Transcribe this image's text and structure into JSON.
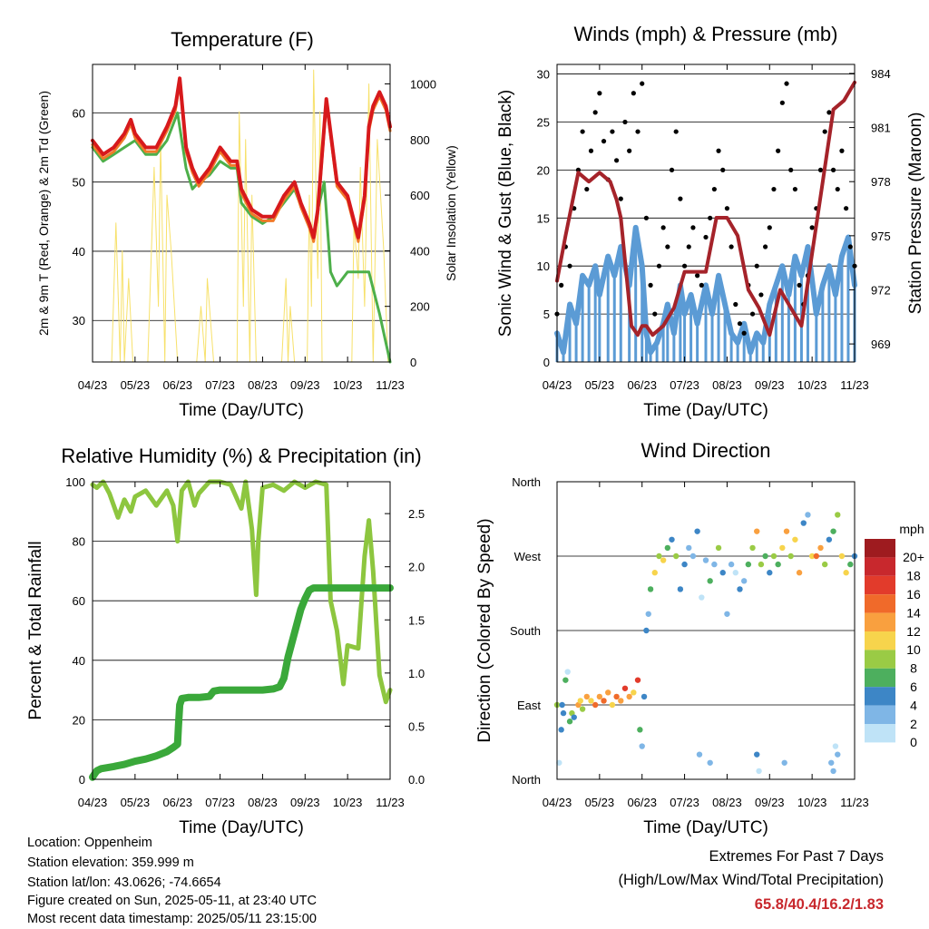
{
  "colors": {
    "t2m": "#d7191c",
    "t9m": "#f07a28",
    "td": "#4daf4a",
    "solar": "#f7e16b",
    "wind": "#5b9bd5",
    "gust": "#000000",
    "pressure": "#a5232a",
    "rh": "#8dc63f",
    "rain": "#3aa83a",
    "extremes": "#c8282d"
  },
  "x_ticks": [
    "04/23",
    "05/23",
    "06/23",
    "07/23",
    "08/23",
    "09/23",
    "10/23",
    "11/23"
  ],
  "info": {
    "location": "Location: Oppenheim",
    "elevation": "Station elevation: 359.999 m",
    "latlon": "Station lat/lon: 43.0626; -74.6654",
    "created": "Figure created on Sun, 2025-05-11, at 23:40 UTC",
    "recent": "Most recent data timestamp: 2025/05/11 23:15:00"
  },
  "extremes": {
    "title": "Extremes For Past 7 Days",
    "subtitle": "(High/Low/Max Wind/Total Precipitation)",
    "values": "65.8/40.4/16.2/1.83"
  },
  "chart_data": [
    {
      "type": "line",
      "title": "Temperature (F)",
      "xlabel": "Time (Day/UTC)",
      "ylabel": "2m & 9m T (Red, Orange) & 2m Td (Green)",
      "ylabel_right": "Solar Insolation (Yellow)",
      "ylim": [
        24,
        67
      ],
      "ylim_right": [
        0,
        1070
      ],
      "yticks": [
        30,
        40,
        50,
        60
      ],
      "yticks_right": [
        0,
        200,
        400,
        600,
        800,
        1000
      ],
      "x_range": [
        0,
        7
      ],
      "grid": true,
      "series": [
        {
          "key": "t2m",
          "color": "t2m",
          "x": [
            0,
            0.25,
            0.5,
            0.75,
            0.9,
            1.0,
            1.25,
            1.5,
            1.75,
            1.95,
            2.05,
            2.2,
            2.35,
            2.5,
            2.75,
            3.0,
            3.25,
            3.4,
            3.5,
            3.75,
            4.0,
            4.25,
            4.5,
            4.75,
            4.9,
            5.1,
            5.2,
            5.3,
            5.5,
            5.75,
            6.0,
            6.25,
            6.4,
            6.5,
            6.6,
            6.75,
            6.9,
            7.0
          ],
          "y": [
            56,
            54,
            55,
            57,
            59,
            57,
            55,
            55,
            58,
            61,
            65,
            55,
            52,
            50,
            52,
            55,
            53,
            53,
            49,
            46,
            45,
            45,
            48,
            50,
            47,
            44,
            42,
            46,
            62,
            50,
            48,
            42,
            48,
            58,
            61,
            63,
            61,
            58
          ]
        },
        {
          "key": "td",
          "color": "td",
          "x": [
            0,
            0.25,
            0.5,
            0.75,
            1.0,
            1.25,
            1.5,
            1.75,
            2.0,
            2.2,
            2.35,
            2.5,
            2.75,
            3.0,
            3.25,
            3.4,
            3.5,
            3.75,
            4.0,
            4.25,
            4.5,
            4.75,
            5.0,
            5.2,
            5.3,
            5.45,
            5.6,
            5.75,
            6.0,
            6.25,
            6.5,
            6.75,
            7.0
          ],
          "y": [
            55,
            53,
            54,
            55,
            56,
            54,
            54,
            56,
            60,
            52,
            49,
            50,
            51,
            53,
            52,
            52,
            47,
            45,
            44,
            45,
            47,
            49,
            45,
            42,
            46,
            50,
            37,
            35,
            37,
            37,
            37,
            31,
            24
          ]
        },
        {
          "key": "solar",
          "color": "solar",
          "x": [
            0.45,
            0.55,
            0.65,
            0.7,
            0.75,
            0.85,
            0.95,
            1.3,
            1.45,
            1.55,
            1.6,
            1.7,
            1.75,
            1.85,
            2.0,
            2.45,
            2.55,
            2.65,
            2.7,
            2.8,
            2.85,
            3.4,
            3.45,
            3.55,
            3.6,
            3.7,
            3.75,
            3.85,
            4.45,
            4.55,
            4.6,
            4.65,
            4.75,
            5.05,
            5.1,
            5.15,
            5.2,
            5.3,
            5.35,
            5.4,
            6.1,
            6.15,
            6.25,
            6.3,
            6.4,
            6.5,
            6.6,
            6.7,
            6.85,
            6.95
          ],
          "y": [
            0,
            500,
            0,
            400,
            0,
            300,
            0,
            0,
            700,
            200,
            800,
            0,
            600,
            400,
            0,
            0,
            200,
            0,
            300,
            100,
            0,
            0,
            900,
            200,
            800,
            0,
            600,
            0,
            0,
            300,
            0,
            200,
            0,
            0,
            600,
            200,
            1050,
            300,
            900,
            0,
            0,
            500,
            300,
            700,
            200,
            1000,
            0,
            800,
            400,
            0
          ]
        }
      ]
    },
    {
      "type": "scatter",
      "title": "Winds (mph) & Pressure (mb)",
      "xlabel": "Time (Day/UTC)",
      "ylabel": "Sonic Wind & Gust (Blue, Black)",
      "ylabel_right": "Station Pressure (Maroon)",
      "ylim": [
        0,
        31
      ],
      "ylim_right": [
        968.0,
        984.5
      ],
      "yticks": [
        0,
        5,
        10,
        15,
        20,
        25,
        30
      ],
      "yticks_right": [
        969,
        972,
        975,
        978,
        981,
        984
      ],
      "x_range": [
        0,
        7
      ],
      "grid": true,
      "series": [
        {
          "key": "pressure",
          "name": "Station Pressure",
          "color": "pressure",
          "x": [
            0,
            0.2,
            0.5,
            0.75,
            1.0,
            1.25,
            1.4,
            1.5,
            1.75,
            1.9,
            2.0,
            2.1,
            2.25,
            2.5,
            2.75,
            3.0,
            3.25,
            3.5,
            3.75,
            4.0,
            4.25,
            4.5,
            4.75,
            5.0,
            5.25,
            5.5,
            5.75,
            6.0,
            6.25,
            6.5,
            6.75,
            7.0
          ],
          "y": [
            972.5,
            975,
            978.5,
            978,
            978.5,
            978,
            977,
            976,
            970,
            969.5,
            970,
            970,
            969.5,
            970,
            971,
            973,
            973,
            973,
            976,
            976,
            975,
            972,
            971,
            969.5,
            972,
            971,
            970,
            974,
            978,
            982,
            982.5,
            983.5
          ]
        },
        {
          "key": "wind",
          "name": "Sonic Wind",
          "color": "wind",
          "x": [
            0,
            0.15,
            0.3,
            0.45,
            0.6,
            0.75,
            0.9,
            1.0,
            1.2,
            1.35,
            1.5,
            1.7,
            1.85,
            2.0,
            2.1,
            2.2,
            2.35,
            2.5,
            2.6,
            2.75,
            2.9,
            3.0,
            3.15,
            3.3,
            3.5,
            3.65,
            3.8,
            3.95,
            4.1,
            4.25,
            4.4,
            4.55,
            4.7,
            4.85,
            5.0,
            5.15,
            5.3,
            5.45,
            5.6,
            5.75,
            5.9,
            6.1,
            6.25,
            6.4,
            6.55,
            6.7,
            6.85,
            7.0
          ],
          "y": [
            3,
            1,
            6,
            4,
            9,
            8,
            10,
            7,
            11,
            9,
            12,
            8,
            14,
            10,
            3,
            1,
            2,
            4,
            6,
            3,
            8,
            5,
            7,
            4,
            8,
            5,
            9,
            6,
            3,
            2,
            4,
            1,
            3,
            2,
            6,
            8,
            10,
            7,
            11,
            9,
            12,
            5,
            8,
            10,
            7,
            11,
            13,
            8
          ]
        },
        {
          "key": "gust",
          "name": "Gust",
          "color": "gust",
          "x": [
            0,
            0.1,
            0.2,
            0.3,
            0.4,
            0.5,
            0.6,
            0.7,
            0.8,
            0.9,
            1.0,
            1.1,
            1.2,
            1.3,
            1.4,
            1.5,
            1.6,
            1.7,
            1.8,
            1.9,
            2.0,
            2.1,
            2.2,
            2.3,
            2.4,
            2.5,
            2.6,
            2.7,
            2.8,
            2.9,
            3.0,
            3.1,
            3.2,
            3.3,
            3.4,
            3.5,
            3.6,
            3.7,
            3.8,
            3.9,
            4.0,
            4.1,
            4.2,
            4.3,
            4.4,
            4.5,
            4.6,
            4.7,
            4.8,
            4.9,
            5.0,
            5.1,
            5.2,
            5.3,
            5.4,
            5.5,
            5.6,
            5.7,
            5.8,
            5.9,
            6.0,
            6.1,
            6.2,
            6.3,
            6.4,
            6.5,
            6.6,
            6.7,
            6.8,
            6.9,
            7.0
          ],
          "y": [
            5,
            8,
            12,
            10,
            16,
            20,
            24,
            18,
            22,
            26,
            28,
            23,
            19,
            24,
            21,
            17,
            25,
            22,
            28,
            24,
            29,
            15,
            8,
            5,
            10,
            14,
            12,
            20,
            24,
            17,
            10,
            12,
            14,
            9,
            8,
            13,
            15,
            18,
            22,
            20,
            16,
            12,
            6,
            4,
            3,
            8,
            5,
            10,
            7,
            12,
            14,
            18,
            22,
            27,
            29,
            20,
            18,
            8,
            6,
            9,
            14,
            16,
            20,
            24,
            26,
            20,
            18,
            22,
            16,
            12,
            10
          ]
        }
      ]
    },
    {
      "type": "line",
      "title": "Relative Humidity (%) & Precipitation (in)",
      "xlabel": "Time (Day/UTC)",
      "ylabel": "Percent & Total Rainfall",
      "ylim": [
        0,
        100
      ],
      "ylim_right": [
        0,
        2.8
      ],
      "yticks": [
        0,
        20,
        40,
        60,
        80,
        100
      ],
      "yticks_right": [
        "0.0",
        "0.5",
        "1.0",
        "1.5",
        "2.0",
        "2.5"
      ],
      "x_range": [
        0,
        7
      ],
      "grid": true,
      "series": [
        {
          "key": "rh",
          "name": "Relative Humidity",
          "color": "rh",
          "x": [
            0,
            0.1,
            0.25,
            0.4,
            0.6,
            0.75,
            0.9,
            1.0,
            1.25,
            1.5,
            1.75,
            1.9,
            2.0,
            2.1,
            2.25,
            2.4,
            2.5,
            2.75,
            3.0,
            3.25,
            3.5,
            3.6,
            3.75,
            3.85,
            3.9,
            4.0,
            4.25,
            4.5,
            4.75,
            5.0,
            5.25,
            5.5,
            5.6,
            5.75,
            5.9,
            6.0,
            6.25,
            6.4,
            6.5,
            6.6,
            6.75,
            6.9,
            7.0
          ],
          "y": [
            99,
            98,
            100,
            96,
            88,
            94,
            90,
            95,
            97,
            92,
            97,
            92,
            80,
            97,
            100,
            92,
            96,
            100,
            100,
            99,
            91,
            100,
            84,
            62,
            80,
            98,
            99,
            97,
            100,
            98,
            100,
            99,
            60,
            50,
            32,
            45,
            44,
            75,
            87,
            70,
            35,
            26,
            30
          ]
        },
        {
          "key": "rain",
          "name": "Total Rainfall",
          "color": "rain",
          "x": [
            0,
            0.05,
            0.1,
            0.2,
            0.5,
            0.75,
            1.0,
            1.25,
            1.5,
            1.75,
            1.9,
            2.0,
            2.02,
            2.05,
            2.1,
            2.25,
            2.5,
            2.75,
            2.85,
            3.0,
            3.25,
            3.5,
            3.75,
            4.0,
            4.25,
            4.4,
            4.5,
            4.6,
            4.7,
            4.8,
            4.9,
            5.0,
            5.1,
            5.2,
            5.5,
            6.0,
            6.5,
            7.0
          ],
          "y": [
            0.02,
            0.05,
            0.08,
            0.1,
            0.12,
            0.14,
            0.17,
            0.19,
            0.22,
            0.26,
            0.3,
            0.33,
            0.5,
            0.7,
            0.76,
            0.77,
            0.77,
            0.78,
            0.83,
            0.84,
            0.84,
            0.84,
            0.84,
            0.84,
            0.85,
            0.87,
            0.95,
            1.15,
            1.3,
            1.45,
            1.6,
            1.7,
            1.78,
            1.8,
            1.8,
            1.8,
            1.8,
            1.8
          ]
        }
      ]
    },
    {
      "type": "scatter",
      "title": "Wind Direction",
      "xlabel": "Time (Day/UTC)",
      "ylabel": "Direction (Colored By Speed)",
      "ylim": [
        0,
        360
      ],
      "yticks": [
        "North",
        "East",
        "South",
        "West",
        "North"
      ],
      "x_range": [
        0,
        7
      ],
      "grid": true,
      "colorbar_title": "mph",
      "colorbar_labels": [
        "20+",
        "18",
        "16",
        "14",
        "12",
        "10",
        "8",
        "6",
        "4",
        "2",
        "0"
      ],
      "colorbar_colors": [
        "#9e1b1f",
        "#c8282d",
        "#e23b2b",
        "#f06a2a",
        "#f9a03f",
        "#f7d44c",
        "#9acb45",
        "#4daf5e",
        "#3d86c6",
        "#7fb6e6",
        "#bfe3f7"
      ],
      "x": [
        0,
        0.1,
        0.15,
        0.2,
        0.3,
        0.35,
        0.4,
        0.5,
        0.55,
        0.6,
        0.7,
        0.8,
        0.9,
        1.0,
        1.1,
        1.2,
        1.3,
        1.4,
        1.5,
        1.6,
        1.7,
        1.8,
        1.9,
        1.95,
        2.0,
        2.05,
        2.1,
        2.15,
        2.2,
        2.3,
        2.4,
        2.5,
        2.6,
        2.7,
        2.8,
        2.9,
        3.0,
        3.1,
        3.2,
        3.3,
        3.4,
        3.5,
        3.6,
        3.7,
        3.8,
        3.9,
        4.0,
        4.1,
        4.2,
        4.3,
        4.4,
        4.5,
        4.6,
        4.7,
        4.8,
        4.9,
        5.0,
        5.1,
        5.2,
        5.3,
        5.4,
        5.5,
        5.6,
        5.7,
        5.8,
        5.9,
        6.0,
        6.1,
        6.2,
        6.3,
        6.4,
        6.5,
        6.6,
        6.7,
        6.8,
        6.9,
        7.0,
        0.05,
        0.12,
        0.25,
        3.35,
        3.6,
        4.7,
        4.75,
        5.35,
        6.45,
        6.5,
        6.55,
        6.6
      ],
      "y": [
        90,
        60,
        80,
        120,
        70,
        80,
        75,
        90,
        95,
        85,
        100,
        95,
        90,
        100,
        95,
        105,
        90,
        100,
        95,
        110,
        100,
        105,
        120,
        60,
        40,
        100,
        180,
        200,
        230,
        250,
        270,
        265,
        280,
        290,
        270,
        230,
        260,
        280,
        270,
        300,
        220,
        265,
        240,
        260,
        280,
        250,
        200,
        260,
        250,
        230,
        240,
        260,
        280,
        300,
        260,
        270,
        250,
        270,
        260,
        280,
        300,
        270,
        290,
        250,
        310,
        320,
        270,
        270,
        280,
        260,
        290,
        300,
        320,
        270,
        250,
        260,
        270,
        20,
        90,
        130,
        30,
        20,
        30,
        10,
        20,
        20,
        10,
        40,
        30
      ],
      "speed": [
        8,
        5,
        4,
        6,
        7,
        8,
        5,
        12,
        10,
        9,
        13,
        11,
        14,
        12,
        15,
        13,
        11,
        14,
        12,
        16,
        13,
        11,
        17,
        6,
        3,
        4,
        4,
        3,
        6,
        10,
        9,
        10,
        6,
        5,
        8,
        4,
        5,
        3,
        2,
        4,
        1,
        3,
        6,
        2,
        8,
        4,
        2,
        3,
        1,
        5,
        3,
        7,
        9,
        12,
        8,
        6,
        5,
        8,
        6,
        10,
        12,
        9,
        11,
        13,
        4,
        2,
        10,
        14,
        12,
        9,
        4,
        7,
        8,
        11,
        10,
        6,
        5,
        0,
        5,
        0,
        2,
        3,
        4,
        1,
        3,
        2,
        2,
        1,
        3
      ]
    }
  ]
}
